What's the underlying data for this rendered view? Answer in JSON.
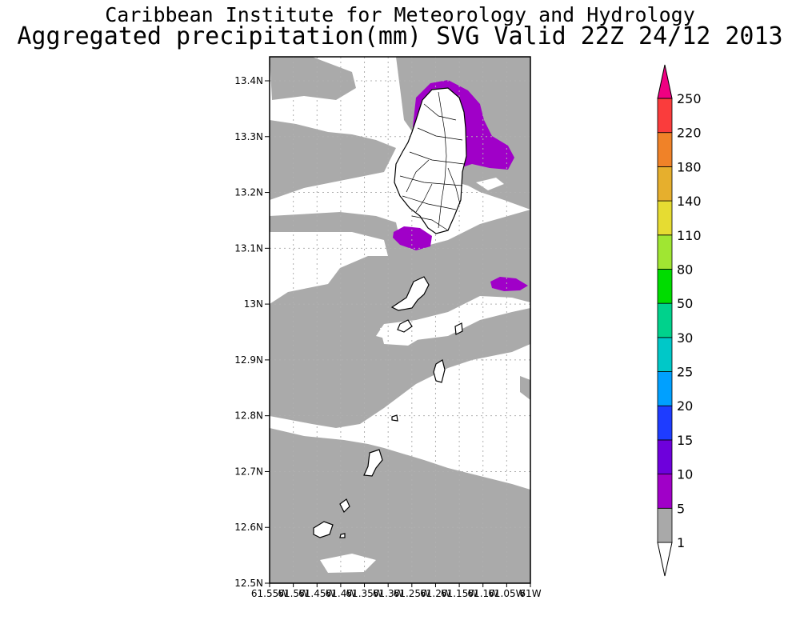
{
  "header": {
    "title": "Caribbean Institute for Meteorology and Hydrology",
    "subtitle": "Aggregated precipitation(mm) SVG Valid 22Z 24/12 2013"
  },
  "map": {
    "lat_labels": [
      "13.4N",
      "13.3N",
      "13.2N",
      "13.1N",
      "13N",
      "12.9N",
      "12.8N",
      "12.7N",
      "12.6N",
      "12.5N"
    ],
    "lon_labels": [
      "61.55W",
      "61.5W",
      "61.45W",
      "61.4W",
      "61.35W",
      "61.3W",
      "61.25W",
      "61.2W",
      "61.15W",
      "61.1W",
      "61.05W",
      "61W"
    ],
    "land_color": "#ffffff",
    "grid": true
  },
  "colorbar": {
    "levels": [
      "1",
      "5",
      "10",
      "15",
      "20",
      "25",
      "30",
      "50",
      "80",
      "110",
      "140",
      "180",
      "220",
      "250"
    ],
    "colors": [
      "#ffffff",
      "#a9a9a9",
      "#a000c8",
      "#6e00dc",
      "#1e3cff",
      "#00a0ff",
      "#00c8c8",
      "#00d28c",
      "#00dc00",
      "#a0e632",
      "#e6dc32",
      "#e6af2d",
      "#f08228",
      "#fa3c3c",
      "#f00082"
    ]
  }
}
